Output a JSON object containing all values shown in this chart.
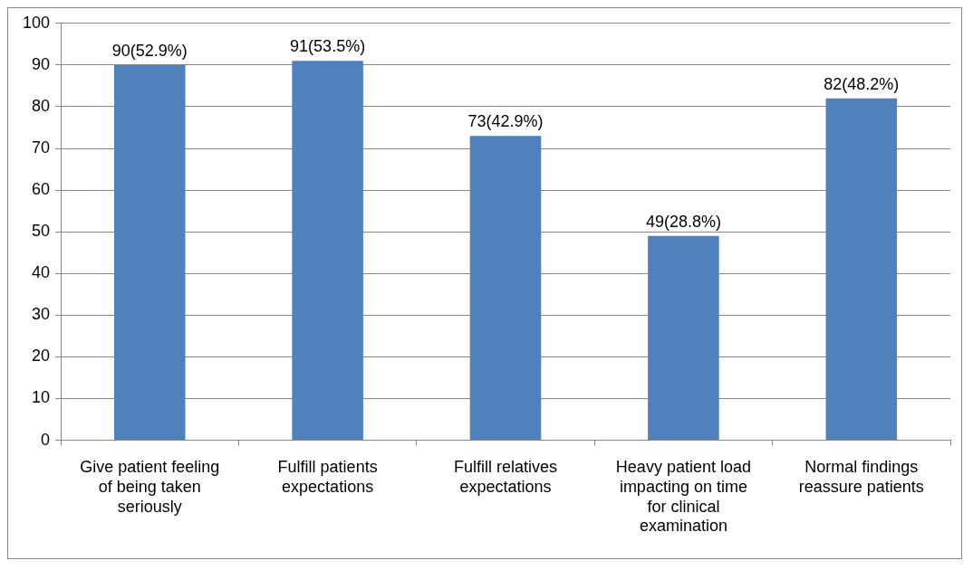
{
  "chart_data": {
    "type": "bar",
    "categories": [
      "Give patient feeling of being taken seriously",
      "Fulfill patients expectations",
      "Fulfill relatives expectations",
      "Heavy patient load impacting on time for clinical examination",
      "Normal findings reassure patients"
    ],
    "values": [
      90,
      91,
      73,
      49,
      82
    ],
    "value_labels": [
      "90(52.9%)",
      "91(53.5%)",
      "73(42.9%)",
      "49(28.8%)",
      "82(48.2%)"
    ],
    "color": "#4f81bd",
    "ylim": [
      0,
      100
    ],
    "yticks": [
      0,
      10,
      20,
      30,
      40,
      50,
      60,
      70,
      80,
      90,
      100
    ],
    "grid": "y",
    "legend": false
  }
}
